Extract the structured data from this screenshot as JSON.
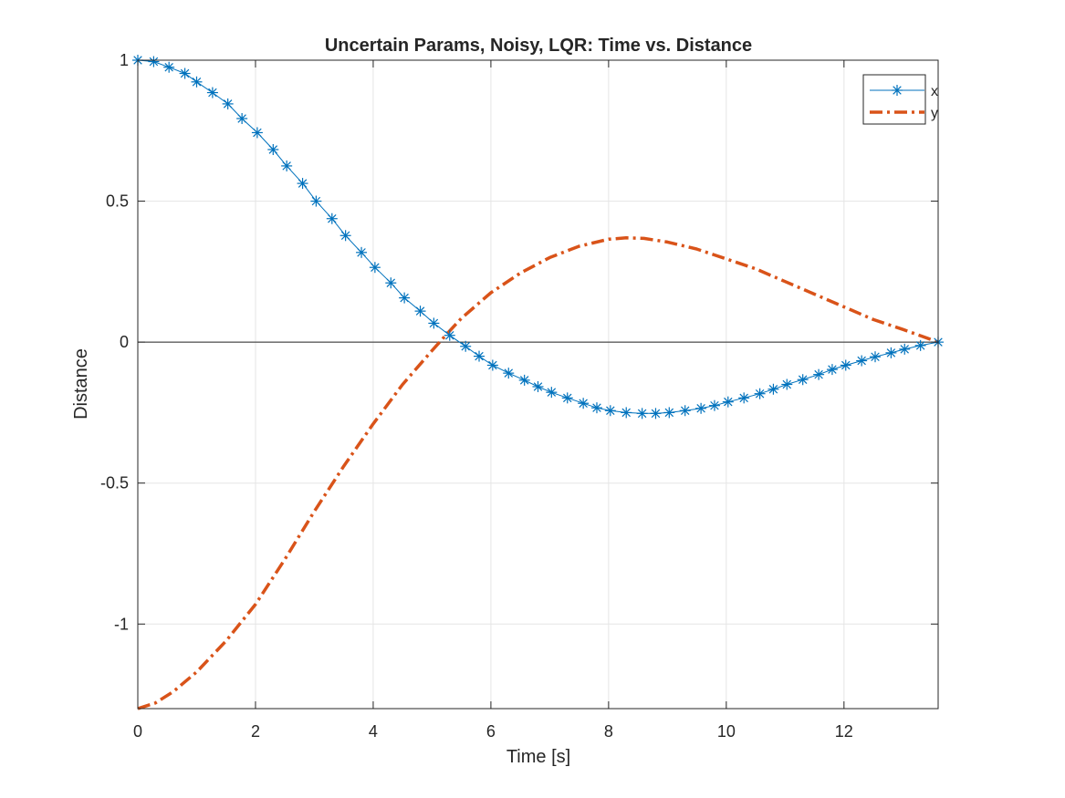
{
  "chart_data": {
    "type": "line",
    "title": "Uncertain Params, Noisy, LQR: Time vs. Distance",
    "xlabel": "Time [s]",
    "ylabel": "Distance",
    "xlim": [
      0,
      13.6
    ],
    "ylim": [
      -1.3,
      1
    ],
    "xticks": [
      0,
      2,
      4,
      6,
      8,
      10,
      12
    ],
    "yticks": [
      1,
      0.5,
      0,
      -0.5,
      -1
    ],
    "xtick_labels": [
      "0",
      "2",
      "4",
      "6",
      "8",
      "10",
      "12"
    ],
    "ytick_labels": [
      "1",
      "0.5",
      "0",
      "-0.5",
      "-1"
    ],
    "grid": true,
    "zero_line": true,
    "legend_position": "top-right",
    "series": [
      {
        "name": "x",
        "color": "#0072BD",
        "style": "solid-with-asterisk-markers",
        "x": [
          0,
          0.27,
          0.53,
          0.8,
          1.0,
          1.27,
          1.53,
          1.77,
          2.03,
          2.3,
          2.53,
          2.8,
          3.03,
          3.3,
          3.53,
          3.8,
          4.03,
          4.3,
          4.53,
          4.8,
          5.03,
          5.3,
          5.57,
          5.8,
          6.03,
          6.3,
          6.57,
          6.8,
          7.03,
          7.3,
          7.57,
          7.8,
          8.03,
          8.3,
          8.57,
          8.8,
          9.03,
          9.3,
          9.57,
          9.8,
          10.03,
          10.3,
          10.57,
          10.8,
          11.03,
          11.3,
          11.57,
          11.8,
          12.03,
          12.3,
          12.53,
          12.8,
          13.03,
          13.3,
          13.6
        ],
        "y": [
          1.0,
          0.995,
          0.975,
          0.953,
          0.923,
          0.885,
          0.845,
          0.793,
          0.743,
          0.683,
          0.625,
          0.563,
          0.5,
          0.438,
          0.378,
          0.318,
          0.265,
          0.21,
          0.157,
          0.11,
          0.067,
          0.024,
          -0.015,
          -0.05,
          -0.082,
          -0.11,
          -0.135,
          -0.158,
          -0.178,
          -0.198,
          -0.217,
          -0.233,
          -0.243,
          -0.25,
          -0.253,
          -0.253,
          -0.25,
          -0.243,
          -0.235,
          -0.225,
          -0.212,
          -0.198,
          -0.183,
          -0.167,
          -0.15,
          -0.133,
          -0.115,
          -0.097,
          -0.082,
          -0.066,
          -0.052,
          -0.038,
          -0.025,
          -0.012,
          0.0
        ]
      },
      {
        "name": "y",
        "color": "#D95319",
        "style": "dash-dot",
        "x": [
          0,
          0.3,
          0.6,
          1.0,
          1.5,
          2.0,
          2.5,
          3.0,
          3.5,
          4.0,
          4.5,
          5.0,
          5.3,
          5.5,
          6.0,
          6.5,
          7.0,
          7.5,
          8.0,
          8.3,
          8.6,
          9.0,
          9.5,
          10.0,
          10.5,
          11.0,
          11.5,
          12.0,
          12.5,
          13.0,
          13.6
        ],
        "y": [
          -1.3,
          -1.28,
          -1.24,
          -1.17,
          -1.06,
          -0.93,
          -0.77,
          -0.6,
          -0.44,
          -0.29,
          -0.15,
          -0.03,
          0.04,
          0.085,
          0.175,
          0.245,
          0.3,
          0.34,
          0.365,
          0.37,
          0.368,
          0.355,
          0.33,
          0.295,
          0.26,
          0.215,
          0.17,
          0.125,
          0.08,
          0.045,
          0.0
        ]
      }
    ]
  }
}
